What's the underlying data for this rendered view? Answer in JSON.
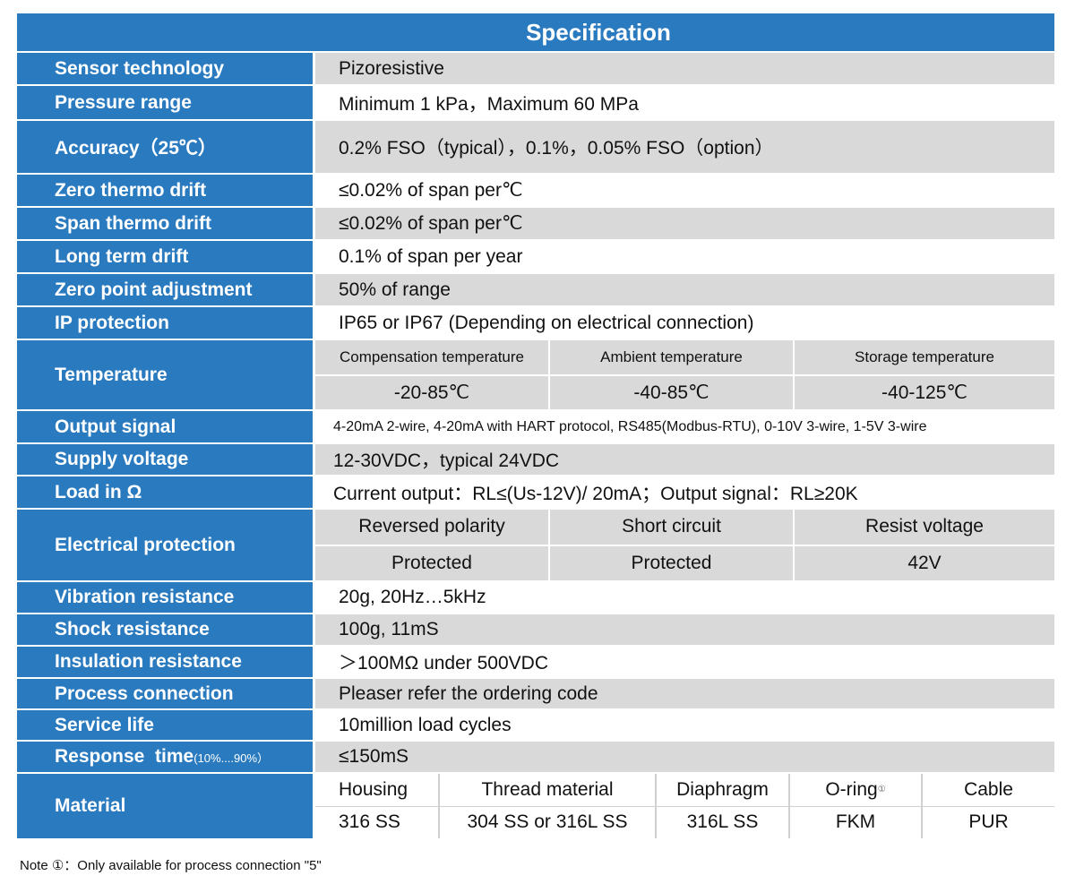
{
  "title": "Specification",
  "rows": {
    "sensor": {
      "label": "Sensor technology",
      "value": "Pizoresistive"
    },
    "pressure": {
      "label": "Pressure range",
      "value": "Minimum 1 kPa，Maximum 60 MPa"
    },
    "accuracy": {
      "label": "Accuracy（25℃）",
      "value": "0.2% FSO（typical），0.1%，0.05% FSO（option）"
    },
    "zero_drift": {
      "label": "Zero thermo drift",
      "value": "≤0.02% of span per℃"
    },
    "span_drift": {
      "label": "Span thermo drift",
      "value": "≤0.02% of span per℃"
    },
    "long_drift": {
      "label": "Long term drift",
      "value": "0.1% of span per year"
    },
    "zero_adj": {
      "label": "Zero point adjustment",
      "value": "50% of range"
    },
    "ip": {
      "label": "IP protection",
      "value": "IP65 or IP67 (Depending on electrical connection)"
    },
    "temperature": {
      "label": "Temperature",
      "headers": [
        "Compensation temperature",
        "Ambient temperature",
        "Storage temperature"
      ],
      "values": [
        "-20-85℃",
        "-40-85℃",
        "-40-125℃"
      ]
    },
    "output": {
      "label": "Output signal",
      "value": "4-20mA 2-wire, 4-20mA with HART protocol, RS485(Modbus-RTU), 0-10V 3-wire, 1-5V 3-wire"
    },
    "supply": {
      "label": "Supply voltage",
      "value": "12-30VDC，typical 24VDC"
    },
    "load": {
      "label": "Load in Ω",
      "value": "Current output：RL≤(Us-12V)/ 20mA；Output signal：RL≥20K"
    },
    "electrical": {
      "label": "Electrical protection",
      "headers": [
        "Reversed polarity",
        "Short circuit",
        "Resist voltage"
      ],
      "values": [
        "Protected",
        "Protected",
        "42V"
      ]
    },
    "vibration": {
      "label": "Vibration resistance",
      "value": "20g, 20Hz…5kHz"
    },
    "shock": {
      "label": "Shock resistance",
      "value": "100g, 11mS"
    },
    "insulation": {
      "label": "Insulation resistance",
      "value": "＞100MΩ under 500VDC"
    },
    "process": {
      "label": "Process connection",
      "value": "Pleaser refer the ordering code"
    },
    "service": {
      "label": "Service life",
      "value": "10million load cycles"
    },
    "response": {
      "label": "Response  time",
      "label_sub": "(10%....90%）",
      "value": "≤150mS"
    },
    "material": {
      "label": "Material",
      "headers": [
        "Housing",
        "Thread material",
        "Diaphragm",
        "O-ring",
        "Cable"
      ],
      "oring_mark": "①",
      "values": [
        "316 SS",
        "304 SS or 316L SS",
        "316L SS",
        "FKM",
        "PUR"
      ]
    }
  },
  "note": "Note ①：Only available for process connection \"5\""
}
